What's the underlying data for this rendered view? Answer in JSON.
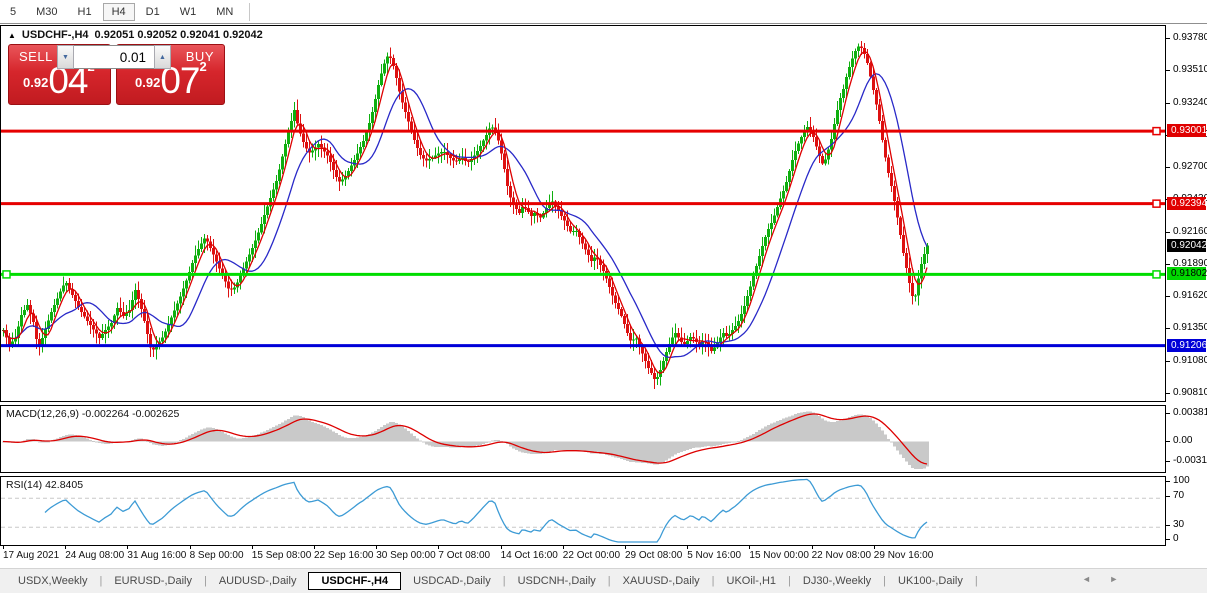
{
  "toolbar": {
    "timeframes": [
      {
        "label": "5",
        "active": false
      },
      {
        "label": "M30",
        "active": false
      },
      {
        "label": "H1",
        "active": false
      },
      {
        "label": "H4",
        "active": true
      },
      {
        "label": "D1",
        "active": false
      },
      {
        "label": "W1",
        "active": false
      },
      {
        "label": "MN",
        "active": false
      }
    ]
  },
  "chart": {
    "title": {
      "symbol_tf": "USDCHF-,H4",
      "ohlc": "0.92051 0.92052 0.92041 0.92042"
    },
    "trade_panel": {
      "sell_label": "SELL",
      "buy_label": "BUY",
      "volume": "0.01",
      "sell_price": {
        "prefix": "0.92",
        "big": "04",
        "pip": "2"
      },
      "buy_price": {
        "prefix": "0.92",
        "big": "07",
        "pip": "2"
      }
    },
    "colors": {
      "up": "#0faf0f",
      "down": "#dd1111",
      "ma_fast": "#dd0000",
      "ma_slow": "#2929c8",
      "hline_red": "#e60000",
      "hline_green": "#00dd00",
      "hline_blue": "#0000d8",
      "macd_bar": "#c9c9c9",
      "macd_signal": "#dd0000",
      "rsi_line": "#3d9bd5",
      "level_dash": "#c8c8c8"
    },
    "price_axis": {
      "ticks": [
        "0.93780",
        "0.93510",
        "0.93240",
        "0.92970",
        "0.92700",
        "0.92430",
        "0.92160",
        "0.91890",
        "0.91620",
        "0.91350",
        "0.91080",
        "0.90810"
      ],
      "badges": [
        {
          "label": "0.93001",
          "price": 0.93001,
          "bg": "#e00000",
          "fg": "#ffffff"
        },
        {
          "label": "0.92394",
          "price": 0.92394,
          "bg": "#e00000",
          "fg": "#ffffff"
        },
        {
          "label": "0.92042",
          "price": 0.92042,
          "bg": "#000000",
          "fg": "#ffffff"
        },
        {
          "label": "0.91802",
          "price": 0.91802,
          "bg": "#00d800",
          "fg": "#000000"
        },
        {
          "label": "0.91206",
          "price": 0.91206,
          "bg": "#0000d8",
          "fg": "#ffffff"
        }
      ]
    },
    "hlines": [
      {
        "price": 0.93001,
        "colorKey": "hline_red",
        "handles": "right"
      },
      {
        "price": 0.92394,
        "colorKey": "hline_red",
        "handles": "right"
      },
      {
        "price": 0.91802,
        "colorKey": "hline_green",
        "handles": "both"
      },
      {
        "price": 0.91206,
        "colorKey": "hline_blue",
        "handles": "none"
      }
    ],
    "series": {
      "price_path": [
        [
          2,
          0.91337
        ],
        [
          8,
          0.91211
        ],
        [
          14,
          0.9127
        ],
        [
          20,
          0.91462
        ],
        [
          26,
          0.91546
        ],
        [
          32,
          0.91404
        ],
        [
          37,
          0.91169
        ],
        [
          43,
          0.9132
        ],
        [
          50,
          0.91487
        ],
        [
          57,
          0.91621
        ],
        [
          64,
          0.91747
        ],
        [
          70,
          0.91646
        ],
        [
          77,
          0.91529
        ],
        [
          84,
          0.91437
        ],
        [
          91,
          0.91353
        ],
        [
          98,
          0.9127
        ],
        [
          104,
          0.91337
        ],
        [
          110,
          0.91395
        ],
        [
          116,
          0.91521
        ],
        [
          122,
          0.91454
        ],
        [
          128,
          0.91504
        ],
        [
          134,
          0.91671
        ],
        [
          139,
          0.91546
        ],
        [
          144,
          0.91379
        ],
        [
          150,
          0.91153
        ],
        [
          156,
          0.9122
        ],
        [
          162,
          0.91287
        ],
        [
          168,
          0.91404
        ],
        [
          174,
          0.91521
        ],
        [
          180,
          0.91638
        ],
        [
          186,
          0.91772
        ],
        [
          192,
          0.91922
        ],
        [
          198,
          0.92031
        ],
        [
          204,
          0.92115
        ],
        [
          210,
          0.92006
        ],
        [
          216,
          0.91889
        ],
        [
          222,
          0.9178
        ],
        [
          228,
          0.91663
        ],
        [
          234,
          0.91697
        ],
        [
          240,
          0.91814
        ],
        [
          246,
          0.91931
        ],
        [
          252,
          0.9204
        ],
        [
          258,
          0.92174
        ],
        [
          264,
          0.92324
        ],
        [
          270,
          0.92467
        ],
        [
          276,
          0.92609
        ],
        [
          282,
          0.92826
        ],
        [
          288,
          0.93027
        ],
        [
          293,
          0.93178
        ],
        [
          297,
          0.93027
        ],
        [
          302,
          0.9291
        ],
        [
          307,
          0.92818
        ],
        [
          312,
          0.92843
        ],
        [
          317,
          0.92893
        ],
        [
          322,
          0.92843
        ],
        [
          327,
          0.92784
        ],
        [
          332,
          0.92676
        ],
        [
          337,
          0.92575
        ],
        [
          342,
          0.926
        ],
        [
          347,
          0.92667
        ],
        [
          352,
          0.92742
        ],
        [
          357,
          0.92834
        ],
        [
          362,
          0.92918
        ],
        [
          367,
          0.93035
        ],
        [
          372,
          0.93194
        ],
        [
          377,
          0.93387
        ],
        [
          382,
          0.93546
        ],
        [
          387,
          0.93646
        ],
        [
          391,
          0.93579
        ],
        [
          395,
          0.93445
        ],
        [
          399,
          0.93295
        ],
        [
          404,
          0.93161
        ],
        [
          409,
          0.93027
        ],
        [
          414,
          0.92901
        ],
        [
          419,
          0.92801
        ],
        [
          424,
          0.92751
        ],
        [
          430,
          0.92776
        ],
        [
          436,
          0.92809
        ],
        [
          442,
          0.92834
        ],
        [
          448,
          0.92784
        ],
        [
          454,
          0.92742
        ],
        [
          460,
          0.92784
        ],
        [
          466,
          0.92734
        ],
        [
          472,
          0.92784
        ],
        [
          478,
          0.92859
        ],
        [
          484,
          0.92951
        ],
        [
          489,
          0.93043
        ],
        [
          494,
          0.9301
        ],
        [
          498,
          0.92893
        ],
        [
          502,
          0.92734
        ],
        [
          506,
          0.92542
        ],
        [
          510,
          0.92416
        ],
        [
          514,
          0.92358
        ],
        [
          518,
          0.92316
        ],
        [
          522,
          0.92383
        ],
        [
          526,
          0.92333
        ],
        [
          530,
          0.92291
        ],
        [
          534,
          0.92324
        ],
        [
          538,
          0.92266
        ],
        [
          542,
          0.92316
        ],
        [
          546,
          0.92374
        ],
        [
          550,
          0.92424
        ],
        [
          554,
          0.92374
        ],
        [
          558,
          0.92316
        ],
        [
          562,
          0.92266
        ],
        [
          566,
          0.92207
        ],
        [
          570,
          0.92148
        ],
        [
          574,
          0.92182
        ],
        [
          578,
          0.92115
        ],
        [
          582,
          0.9204
        ],
        [
          586,
          0.91981
        ],
        [
          590,
          0.91914
        ],
        [
          594,
          0.91956
        ],
        [
          598,
          0.91897
        ],
        [
          602,
          0.9183
        ],
        [
          606,
          0.91747
        ],
        [
          610,
          0.91646
        ],
        [
          614,
          0.91563
        ],
        [
          618,
          0.91496
        ],
        [
          622,
          0.91412
        ],
        [
          626,
          0.91311
        ],
        [
          630,
          0.91228
        ],
        [
          634,
          0.91287
        ],
        [
          638,
          0.91203
        ],
        [
          642,
          0.91119
        ],
        [
          646,
          0.91035
        ],
        [
          650,
          0.90977
        ],
        [
          654,
          0.9091
        ],
        [
          658,
          0.90977
        ],
        [
          662,
          0.91077
        ],
        [
          666,
          0.91178
        ],
        [
          670,
          0.91261
        ],
        [
          674,
          0.91311
        ],
        [
          678,
          0.91261
        ],
        [
          682,
          0.91211
        ],
        [
          686,
          0.91245
        ],
        [
          690,
          0.91287
        ],
        [
          694,
          0.91245
        ],
        [
          698,
          0.91203
        ],
        [
          702,
          0.91261
        ],
        [
          706,
          0.91211
        ],
        [
          710,
          0.91161
        ],
        [
          714,
          0.91203
        ],
        [
          718,
          0.91261
        ],
        [
          722,
          0.91311
        ],
        [
          726,
          0.91278
        ],
        [
          730,
          0.91328
        ],
        [
          734,
          0.9137
        ],
        [
          738,
          0.91429
        ],
        [
          742,
          0.91512
        ],
        [
          746,
          0.91621
        ],
        [
          750,
          0.9173
        ],
        [
          754,
          0.91847
        ],
        [
          758,
          0.91956
        ],
        [
          762,
          0.92065
        ],
        [
          766,
          0.92165
        ],
        [
          770,
          0.92232
        ],
        [
          774,
          0.92316
        ],
        [
          778,
          0.92416
        ],
        [
          782,
          0.925
        ],
        [
          786,
          0.926
        ],
        [
          790,
          0.92734
        ],
        [
          794,
          0.92834
        ],
        [
          798,
          0.92918
        ],
        [
          802,
          0.92985
        ],
        [
          806,
          0.93035
        ],
        [
          810,
          0.93001
        ],
        [
          814,
          0.92901
        ],
        [
          818,
          0.92792
        ],
        [
          822,
          0.92709
        ],
        [
          826,
          0.92818
        ],
        [
          830,
          0.92935
        ],
        [
          834,
          0.93102
        ],
        [
          838,
          0.93253
        ],
        [
          842,
          0.93353
        ],
        [
          846,
          0.93487
        ],
        [
          850,
          0.93587
        ],
        [
          854,
          0.93671
        ],
        [
          858,
          0.93721
        ],
        [
          862,
          0.93671
        ],
        [
          866,
          0.93571
        ],
        [
          870,
          0.9342
        ],
        [
          874,
          0.9327
        ],
        [
          878,
          0.93086
        ],
        [
          882,
          0.92876
        ],
        [
          886,
          0.92684
        ],
        [
          890,
          0.92542
        ],
        [
          894,
          0.92374
        ],
        [
          898,
          0.92182
        ],
        [
          902,
          0.91981
        ],
        [
          906,
          0.91814
        ],
        [
          910,
          0.91646
        ],
        [
          913,
          0.91571
        ],
        [
          916,
          0.9173
        ],
        [
          920,
          0.91889
        ],
        [
          923,
          0.91973
        ],
        [
          926,
          0.92042
        ]
      ]
    }
  },
  "macd": {
    "label": "MACD(12,26,9) -0.002264 -0.002625",
    "axis": [
      "0.003811",
      "0.00",
      "-0.003115"
    ]
  },
  "rsi": {
    "label": "RSI(14) 42.8405",
    "axis": [
      "100",
      "70",
      "30",
      "0"
    ],
    "levels": [
      70,
      30
    ]
  },
  "time_axis": {
    "labels": [
      "17 Aug 2021",
      "24 Aug 08:00",
      "31 Aug 16:00",
      "8 Sep 00:00",
      "15 Sep 08:00",
      "22 Sep 16:00",
      "30 Sep 00:00",
      "7 Oct 08:00",
      "14 Oct 16:00",
      "22 Oct 00:00",
      "29 Oct 08:00",
      "5 Nov 16:00",
      "15 Nov 00:00",
      "22 Nov 08:00",
      "29 Nov 16:00"
    ]
  },
  "tabs": {
    "items": [
      "USDX,Weekly",
      "EURUSD-,Daily",
      "AUDUSD-,Daily",
      "USDCHF-,H4",
      "USDCAD-,Daily",
      "USDCNH-,Daily",
      "XAUUSD-,Daily",
      "UKOil-,H1",
      "DJ30-,Weekly",
      "UK100-,Daily"
    ],
    "active_index": 3,
    "arrows": "◄ ►"
  }
}
